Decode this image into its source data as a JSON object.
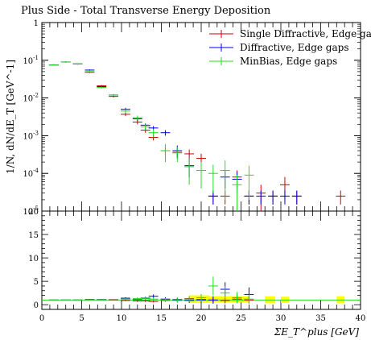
{
  "chart_data": [
    {
      "type": "scatter",
      "title": "Plus Side - Total Transverse Energy Deposition",
      "ylabel": "1/N, dN/dE_T [GeV^-1]",
      "yscale": "log",
      "xlim": [
        0,
        40
      ],
      "ylim": [
        1e-05,
        1
      ],
      "y_tick_labels": [
        "1",
        "10^-1",
        "10^-2",
        "10^-3",
        "10^-4",
        "10^-5"
      ],
      "legend_position": "top-right",
      "series": [
        {
          "name": "Single Diffractive, Edge gaps",
          "color": "#cc0000",
          "x": [
            1.5,
            3,
            4.5,
            6,
            7.5,
            9,
            10.5,
            12,
            13,
            14,
            15.5,
            17,
            18.5,
            20,
            21.5,
            23,
            24.5,
            26,
            27.5,
            29,
            30.5,
            32,
            37.5
          ],
          "y": [
            0.075,
            0.09,
            0.08,
            0.048,
            0.021,
            0.011,
            0.0037,
            0.0023,
            0.0014,
            0.0009,
            0.0004,
            0.00036,
            0.00033,
            0.00025,
            2.5e-05,
            2.5e-05,
            8e-05,
            2.5e-05,
            3e-05,
            2.5e-05,
            5e-05,
            2.5e-05,
            2.5e-05
          ],
          "yerr": [
            0.003,
            0.003,
            0.003,
            0.002,
            0.001,
            0.0006,
            0.0004,
            0.0003,
            0.0002,
            0.00015,
            0.0001,
            0.0001,
            0.0001,
            8e-05,
            1e-05,
            1e-05,
            4e-05,
            1e-05,
            2e-05,
            1e-05,
            3e-05,
            1e-05,
            1e-05
          ]
        },
        {
          "name": "Diffractive, Edge gaps",
          "color": "#0000ee",
          "x": [
            1.5,
            3,
            4.5,
            6,
            7.5,
            9,
            10.5,
            12,
            13,
            14,
            15.5,
            17,
            18.5,
            20,
            21.5,
            23,
            24.5,
            26,
            27.5,
            29,
            30.5,
            32
          ],
          "y": [
            0.075,
            0.09,
            0.08,
            0.055,
            0.02,
            0.012,
            0.005,
            0.0028,
            0.0019,
            0.0016,
            0.0012,
            0.0004,
            0.00016,
            0.00012,
            2.5e-05,
            8e-05,
            7e-05,
            2.5e-05,
            2.5e-05,
            2.5e-05,
            2.5e-05,
            2.5e-05
          ],
          "yerr": [
            0.003,
            0.003,
            0.003,
            0.002,
            0.001,
            0.0006,
            0.0005,
            0.0003,
            0.0002,
            0.0002,
            0.0002,
            0.00015,
            8e-05,
            6e-05,
            1e-05,
            4e-05,
            4e-05,
            1e-05,
            1e-05,
            1e-05,
            1e-05,
            1e-05
          ]
        },
        {
          "name": "MinBias, Edge gaps",
          "color": "#22dd22",
          "x": [
            1.5,
            3,
            4.5,
            6,
            7.5,
            9,
            10.5,
            12,
            13,
            14,
            15.5,
            17,
            18.5,
            20,
            21.5,
            23,
            24.5,
            26
          ],
          "y": [
            0.075,
            0.09,
            0.08,
            0.05,
            0.019,
            0.012,
            0.0045,
            0.003,
            0.0017,
            0.0012,
            0.0004,
            0.00035,
            0.00015,
            0.00012,
            0.0001,
            0.00012,
            5e-05,
            9e-05
          ],
          "yerr": [
            0.003,
            0.003,
            0.003,
            0.002,
            0.001,
            0.0006,
            0.0005,
            0.0004,
            0.0003,
            0.0003,
            0.0002,
            0.00015,
            0.0001,
            8e-05,
            7e-05,
            0.0001,
            4e-05,
            7e-05
          ]
        }
      ]
    },
    {
      "type": "scatter",
      "xlabel": "ΣE_T^plus [GeV]",
      "xlim": [
        0,
        40
      ],
      "ylim": [
        -1,
        20
      ],
      "x_tick_labels": [
        "0",
        "5",
        "10",
        "15",
        "20",
        "25",
        "30",
        "35",
        "40"
      ],
      "y_tick_labels": [
        "0",
        "5",
        "10",
        "15",
        "20"
      ],
      "band_color": "#ffff00",
      "series": [
        {
          "color": "#cc0000",
          "x": [
            1.5,
            3,
            4.5,
            6,
            7.5,
            9,
            10.5,
            12,
            13,
            14,
            15.5,
            17,
            18.5,
            20,
            21.5,
            23,
            24.5,
            26
          ],
          "y": [
            1,
            1,
            1,
            1,
            1.1,
            1,
            0.9,
            0.8,
            0.8,
            0.7,
            0.9,
            1.1,
            1.3,
            1.1,
            1,
            0.9,
            1.2,
            1
          ],
          "yerr": [
            0.05,
            0.05,
            0.05,
            0.05,
            0.1,
            0.1,
            0.15,
            0.2,
            0.2,
            0.2,
            0.3,
            0.4,
            0.5,
            0.5,
            0.6,
            0.6,
            0.7,
            0.8
          ]
        },
        {
          "color": "#0000ee",
          "x": [
            1.5,
            3,
            4.5,
            6,
            7.5,
            9,
            10.5,
            12,
            13,
            14,
            15.5,
            17,
            18.5,
            20,
            21.5,
            23,
            24.5,
            26
          ],
          "y": [
            1,
            1,
            1,
            1.1,
            1,
            1.1,
            1.4,
            1.2,
            1.4,
            1.8,
            1.2,
            1,
            0.9,
            1,
            1,
            3.3,
            1.5,
            2.2
          ],
          "yerr": [
            0.05,
            0.05,
            0.05,
            0.1,
            0.1,
            0.1,
            0.2,
            0.2,
            0.3,
            0.4,
            0.4,
            0.4,
            0.5,
            0.6,
            0.8,
            1.5,
            1,
            1.5
          ]
        },
        {
          "color": "#22dd22",
          "x": [
            1.5,
            3,
            4.5,
            6,
            7.5,
            9,
            10.5,
            12,
            13,
            14,
            15.5,
            17,
            18.5,
            20,
            21.5,
            23,
            24.5,
            26
          ],
          "y": [
            1,
            1,
            1,
            1,
            1,
            1.1,
            1.2,
            1.3,
            1.3,
            1.2,
            1,
            0.9,
            1.2,
            1.5,
            4,
            2.5,
            1.5,
            1.2
          ],
          "yerr": [
            0.05,
            0.05,
            0.05,
            0.1,
            0.1,
            0.1,
            0.2,
            0.3,
            0.3,
            0.4,
            0.4,
            0.5,
            0.6,
            0.8,
            2,
            1.5,
            1.2,
            1
          ]
        }
      ],
      "bands": [
        {
          "x0": 18.5,
          "x1": 21,
          "y0": 0.4,
          "y1": 2.0
        },
        {
          "x0": 21,
          "x1": 26,
          "y0": 0.5,
          "y1": 1.8
        },
        {
          "x0": 28,
          "x1": 29.3,
          "y0": 0.3,
          "y1": 1.8
        },
        {
          "x0": 30,
          "x1": 31,
          "y0": 0.4,
          "y1": 1.7
        },
        {
          "x0": 37,
          "x1": 38,
          "y0": 0.3,
          "y1": 1.8
        }
      ]
    }
  ]
}
